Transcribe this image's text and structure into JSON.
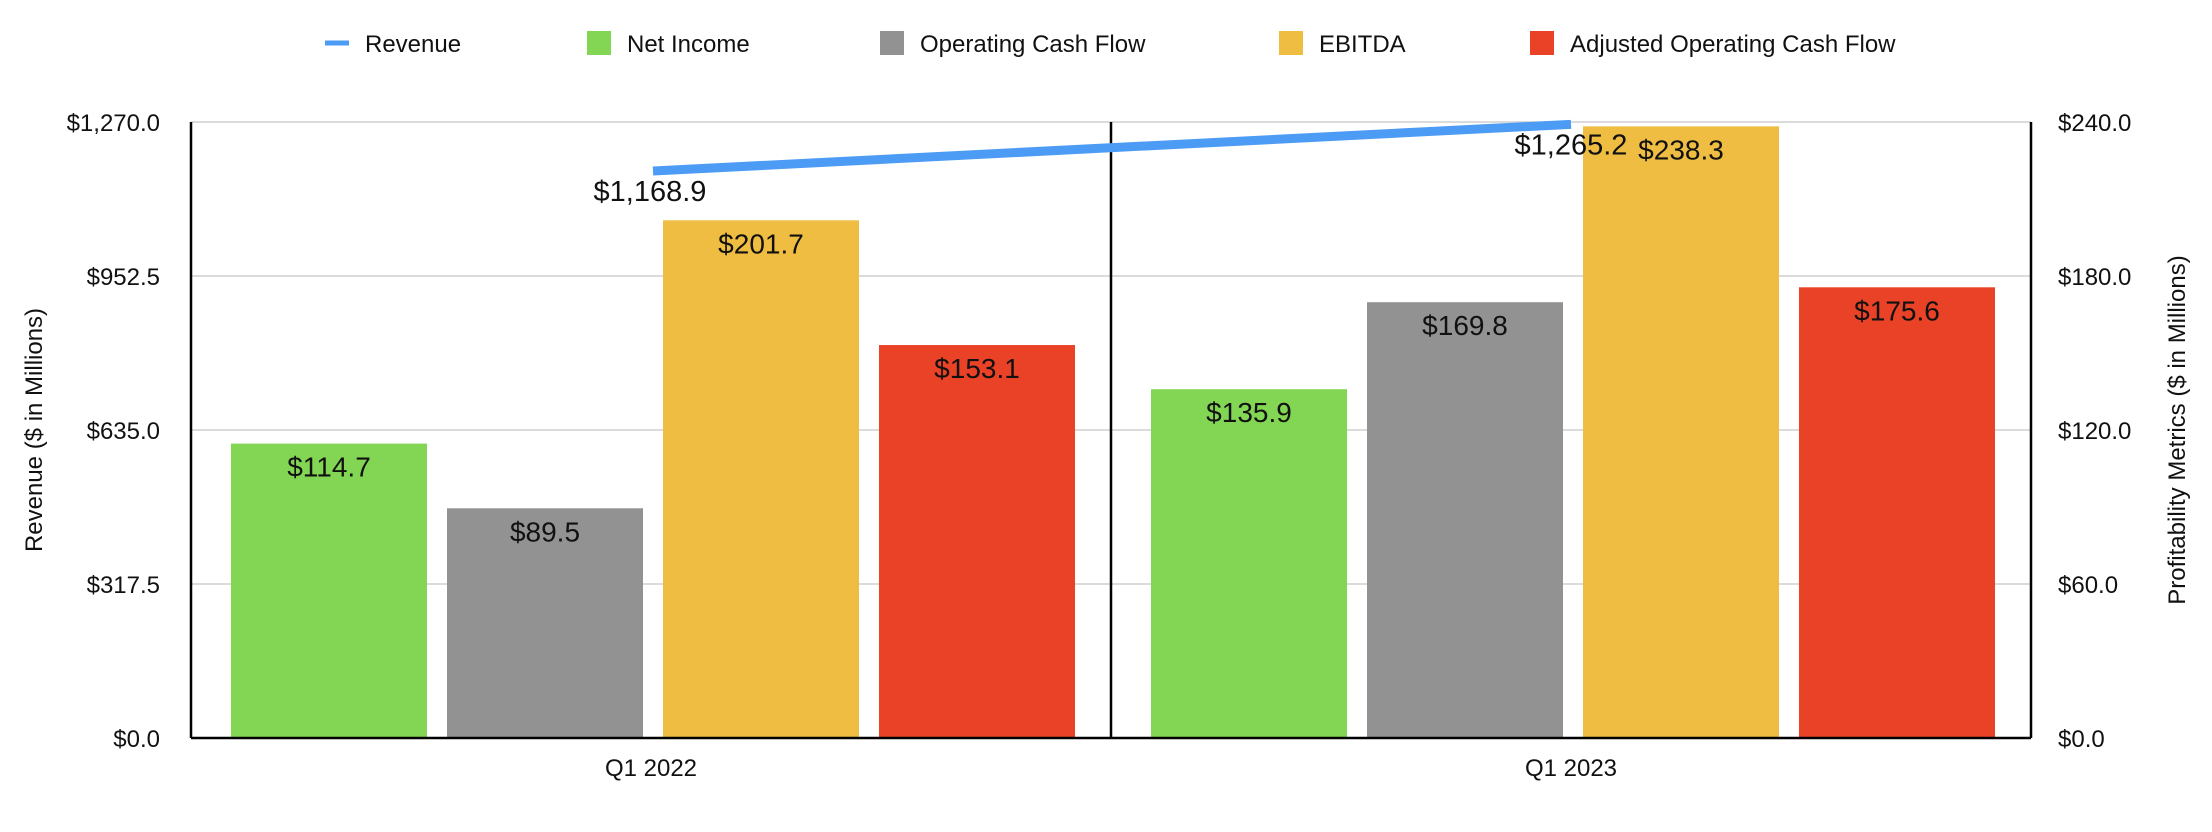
{
  "chart_data": {
    "type": "bar",
    "categories": [
      "Q1 2022",
      "Q1 2023"
    ],
    "series": [
      {
        "name": "Net Income",
        "axis": "right",
        "color": "#82D654",
        "values": [
          114.7,
          135.9
        ],
        "labels": [
          "$114.7",
          "$135.9"
        ]
      },
      {
        "name": "Operating Cash Flow",
        "axis": "right",
        "color": "#929292",
        "values": [
          89.5,
          169.8
        ],
        "labels": [
          "$89.5",
          "$169.8"
        ]
      },
      {
        "name": "EBITDA",
        "axis": "right",
        "color": "#EEBD42",
        "values": [
          201.7,
          238.3
        ],
        "labels": [
          "$201.7",
          "$238.3"
        ]
      },
      {
        "name": "Adjusted Operating Cash Flow",
        "axis": "right",
        "color": "#E94227",
        "values": [
          153.1,
          175.6
        ],
        "labels": [
          "$153.1",
          "$175.6"
        ]
      }
    ],
    "line_series": {
      "name": "Revenue",
      "type": "line",
      "axis": "left",
      "color": "#4C9BF5",
      "values": [
        1168.9,
        1265.2
      ],
      "labels": [
        "$1,168.9",
        "$1,265.2"
      ]
    },
    "legend": {
      "placement": "top",
      "entries": [
        "Revenue",
        "Net Income",
        "Operating Cash Flow",
        "EBITDA",
        "Adjusted Operating Cash Flow"
      ]
    },
    "y_left": {
      "label": "Revenue ($ in Millions)",
      "ylim": [
        0,
        1270
      ],
      "ticks": [
        0,
        317.5,
        635,
        952.5,
        1270
      ],
      "tick_labels": [
        "$0.0",
        "$317.5",
        "$635.0",
        "$952.5",
        "$1,270.0"
      ]
    },
    "y_right": {
      "label": "Profitability Metrics ($ in Millions)",
      "ylim": [
        0,
        240
      ],
      "ticks": [
        0,
        60,
        120,
        180,
        240
      ],
      "tick_labels": [
        "$0.0",
        "$60.0",
        "$120.0",
        "$180.0",
        "$240.0"
      ]
    },
    "grid": true
  }
}
